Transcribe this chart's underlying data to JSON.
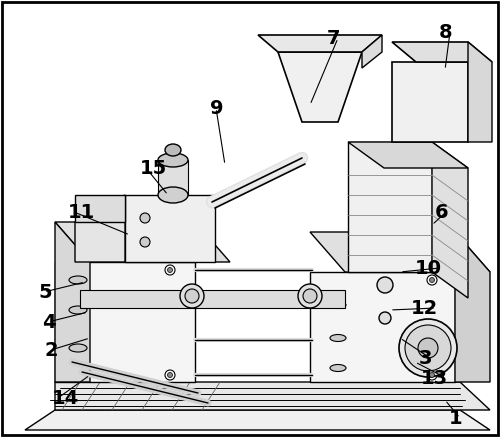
{
  "background_color": "#ffffff",
  "line_color": "#000000",
  "label_color": "#000000",
  "font_size": 14,
  "font_weight": "bold",
  "label_data": [
    [
      "1",
      462,
      418,
      445,
      400
    ],
    [
      "2",
      45,
      350,
      90,
      338
    ],
    [
      "3",
      432,
      358,
      400,
      338
    ],
    [
      "4",
      42,
      322,
      88,
      312
    ],
    [
      "5",
      38,
      292,
      85,
      282
    ],
    [
      "6",
      448,
      212,
      432,
      225
    ],
    [
      "7",
      340,
      38,
      310,
      105
    ],
    [
      "8",
      452,
      32,
      445,
      70
    ],
    [
      "9",
      210,
      108,
      225,
      165
    ],
    [
      "10",
      442,
      268,
      400,
      272
    ],
    [
      "11",
      68,
      212,
      130,
      235
    ],
    [
      "12",
      438,
      308,
      390,
      310
    ],
    [
      "13",
      448,
      378,
      415,
      362
    ],
    [
      "14",
      52,
      398,
      90,
      375
    ],
    [
      "15",
      140,
      168,
      168,
      195
    ]
  ]
}
